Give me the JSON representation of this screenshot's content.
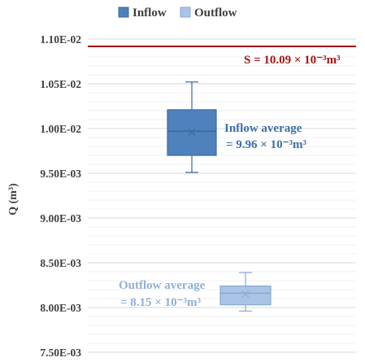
{
  "chart_data": {
    "type": "box",
    "ylabel": "Q (m³)",
    "ylim": [
      0.0075,
      0.011
    ],
    "yticks": [
      {
        "value": 0.0075,
        "label": "7.50E-03"
      },
      {
        "value": 0.008,
        "label": "8.00E-03"
      },
      {
        "value": 0.0085,
        "label": "8.50E-03"
      },
      {
        "value": 0.009,
        "label": "9.00E-03"
      },
      {
        "value": 0.0095,
        "label": "9.50E-03"
      },
      {
        "value": 0.01,
        "label": "1.00E-02"
      },
      {
        "value": 0.0105,
        "label": "1.05E-02"
      },
      {
        "value": 0.011,
        "label": "1.10E-02"
      }
    ],
    "grid": true,
    "legend_position": "top",
    "series": [
      {
        "name": "Inflow",
        "color": "#4f81bd",
        "edge_color": "#3b6a9e",
        "min": 0.00951,
        "q1": 0.0097,
        "median": 0.00997,
        "q3": 0.01021,
        "max": 0.01052,
        "mean": 0.00996
      },
      {
        "name": "Outflow",
        "color": "#a9c4e6",
        "edge_color": "#8aaad2",
        "min": 0.00796,
        "q1": 0.00803,
        "median": 0.00816,
        "q3": 0.00824,
        "max": 0.00839,
        "mean": 0.00815
      }
    ],
    "reference_line": {
      "value": 0.01009,
      "color": "#a31515"
    },
    "annotations": {
      "storage": "S = 10.09 × 10⁻³m³",
      "inflow_line1": "Inflow average",
      "inflow_line2": "= 9.96 × 10⁻³m³",
      "outflow_line1": "Outflow average",
      "outflow_line2": "= 8.15 × 10⁻³m³"
    },
    "annotation_colors": {
      "storage": "#a31515",
      "inflow": "#3e6fa8",
      "outflow": "#8fb0d8"
    }
  }
}
